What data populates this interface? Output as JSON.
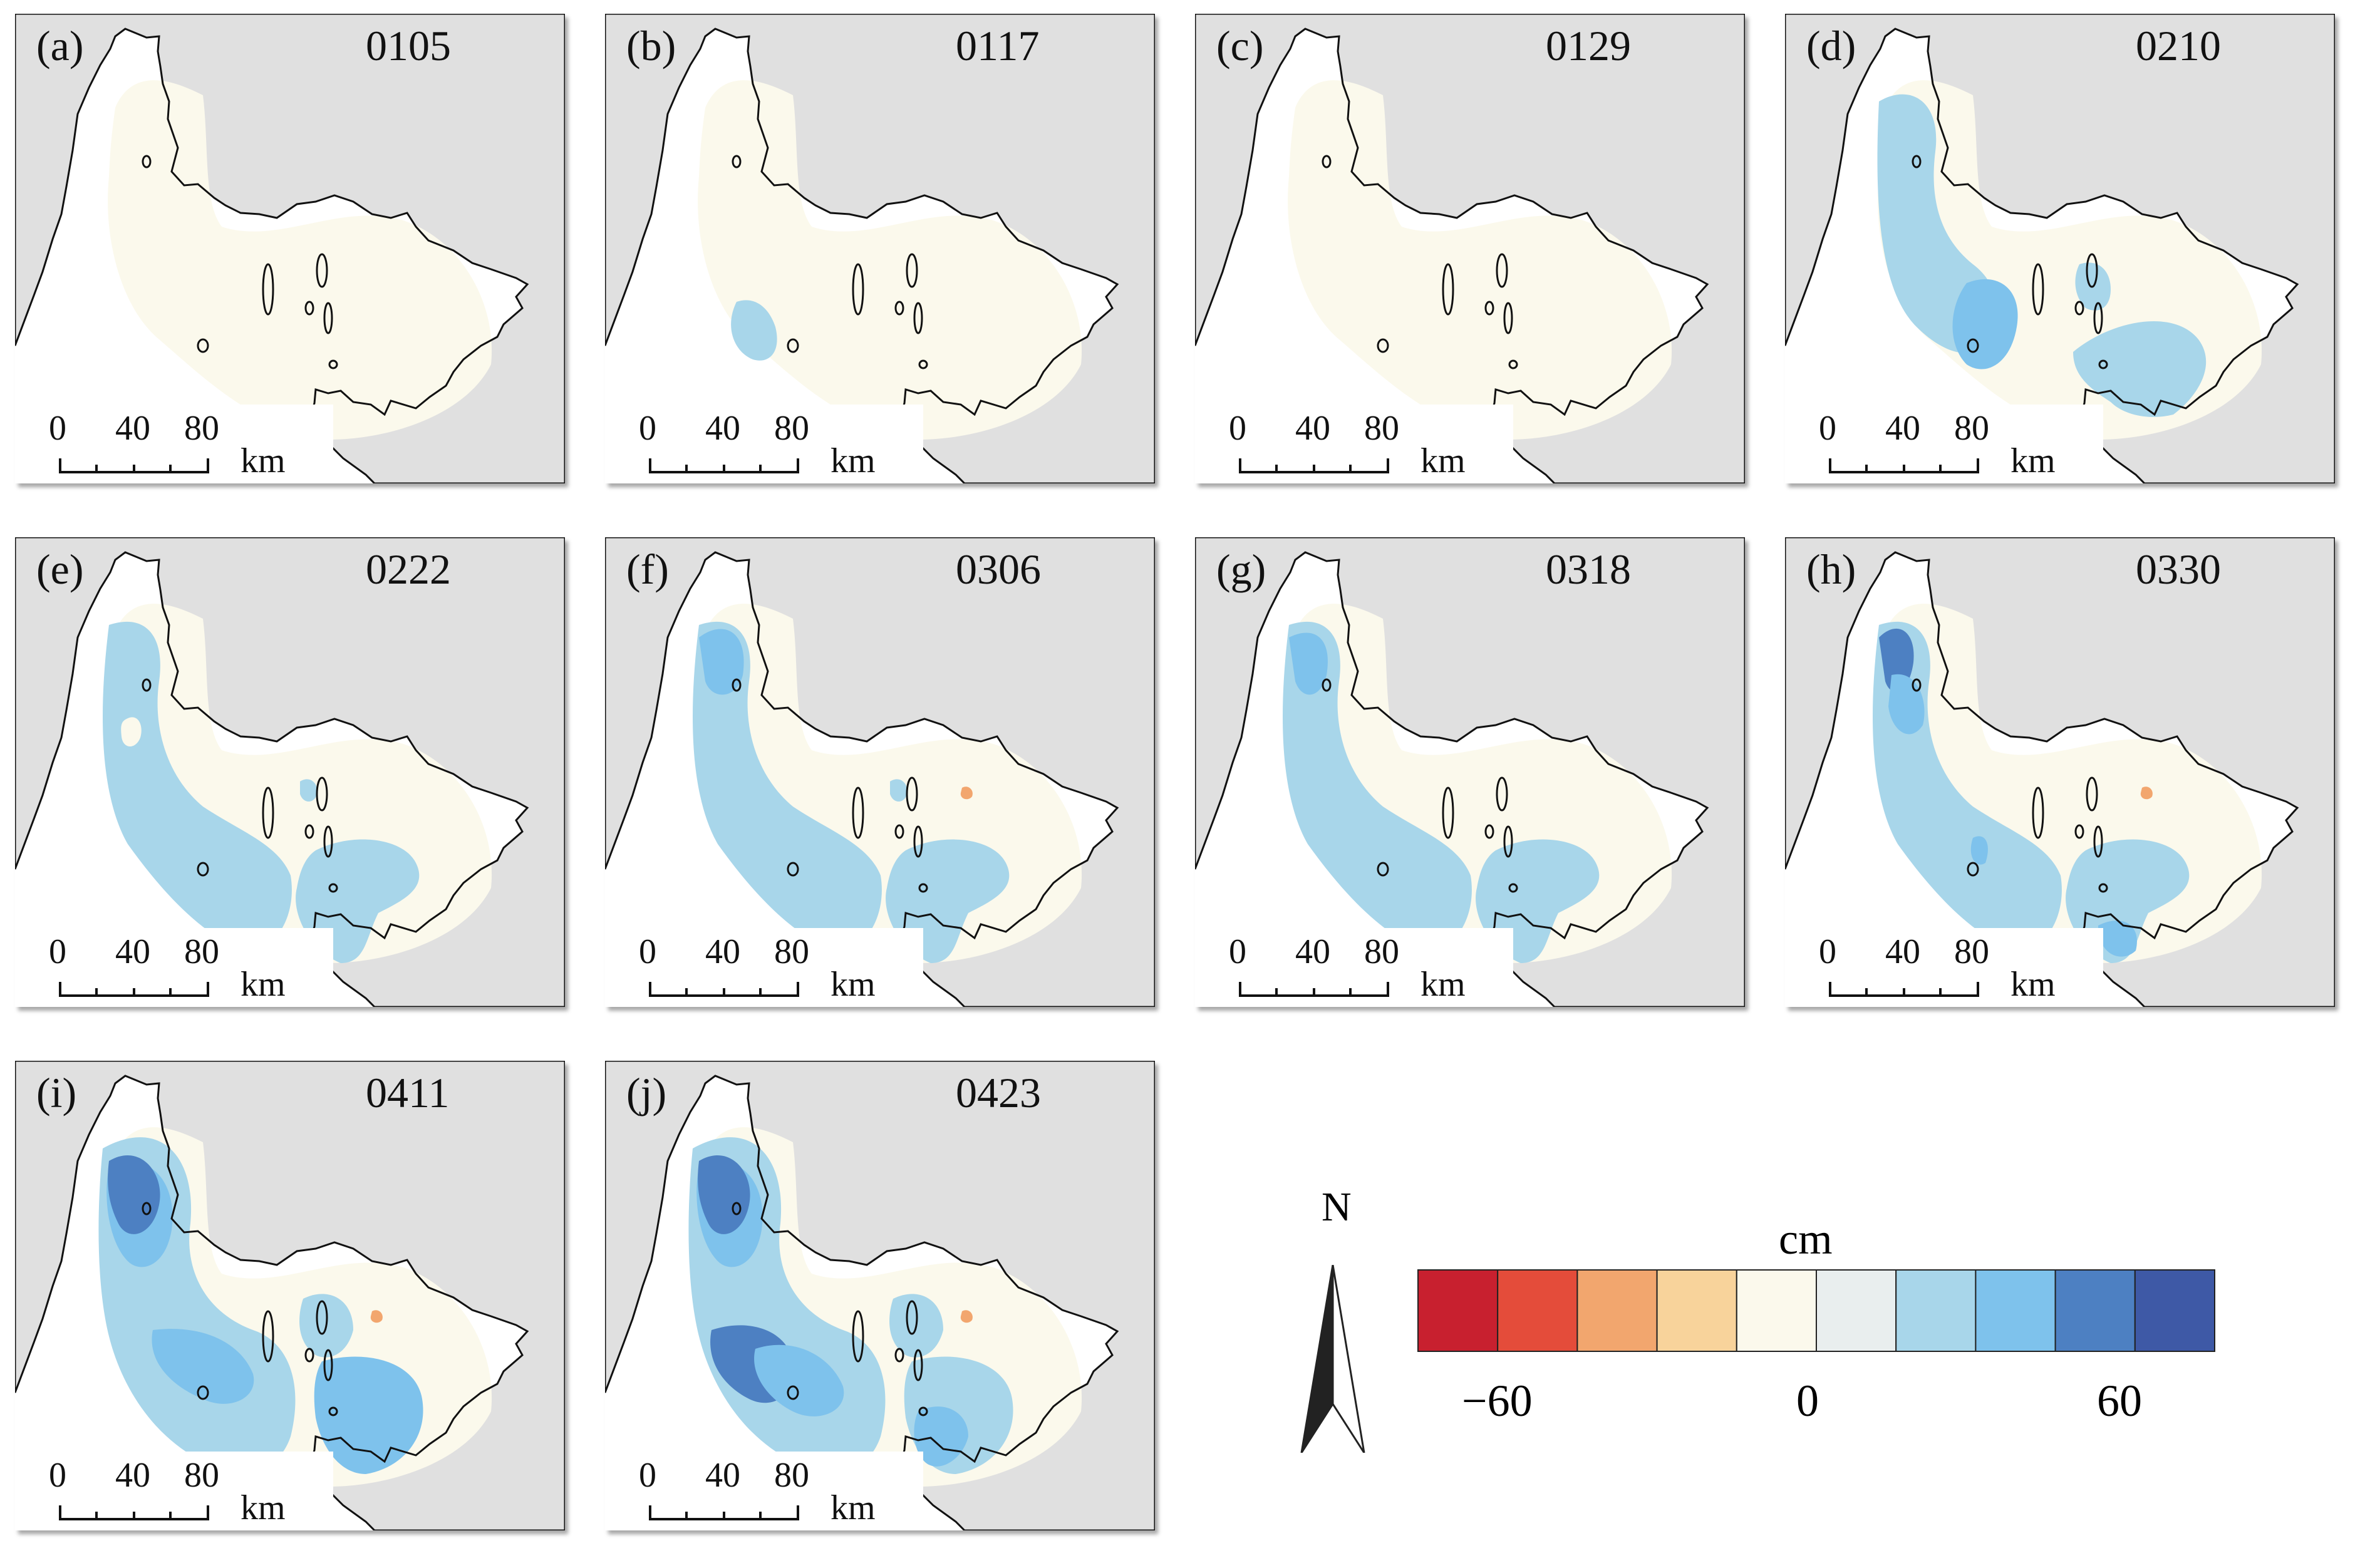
{
  "panels": [
    {
      "letter": "(a)",
      "date": "0105"
    },
    {
      "letter": "(b)",
      "date": "0117"
    },
    {
      "letter": "(c)",
      "date": "0129"
    },
    {
      "letter": "(d)",
      "date": "0210"
    },
    {
      "letter": "(e)",
      "date": "0222"
    },
    {
      "letter": "(f)",
      "date": "0306"
    },
    {
      "letter": "(g)",
      "date": "0318"
    },
    {
      "letter": "(h)",
      "date": "0330"
    },
    {
      "letter": "(i)",
      "date": "0411"
    },
    {
      "letter": "(j)",
      "date": "0423"
    }
  ],
  "scale_bar": {
    "ticks": [
      "0",
      "40",
      "80"
    ],
    "unit": "km"
  },
  "north_arrow": {
    "label": "N"
  },
  "legend": {
    "title": "cm",
    "colors": [
      "#c8202f",
      "#e44c3a",
      "#f2a66e",
      "#f8d39b",
      "#fbf9ec",
      "#e9eeee",
      "#a8d6ea",
      "#7ec2ec",
      "#4d80c2",
      "#3e59a6"
    ],
    "labels": [
      "−60",
      "0",
      "60"
    ]
  },
  "colors": {
    "background": "#e0e0e0",
    "land": "#ffffff",
    "coast": "#111111"
  }
}
